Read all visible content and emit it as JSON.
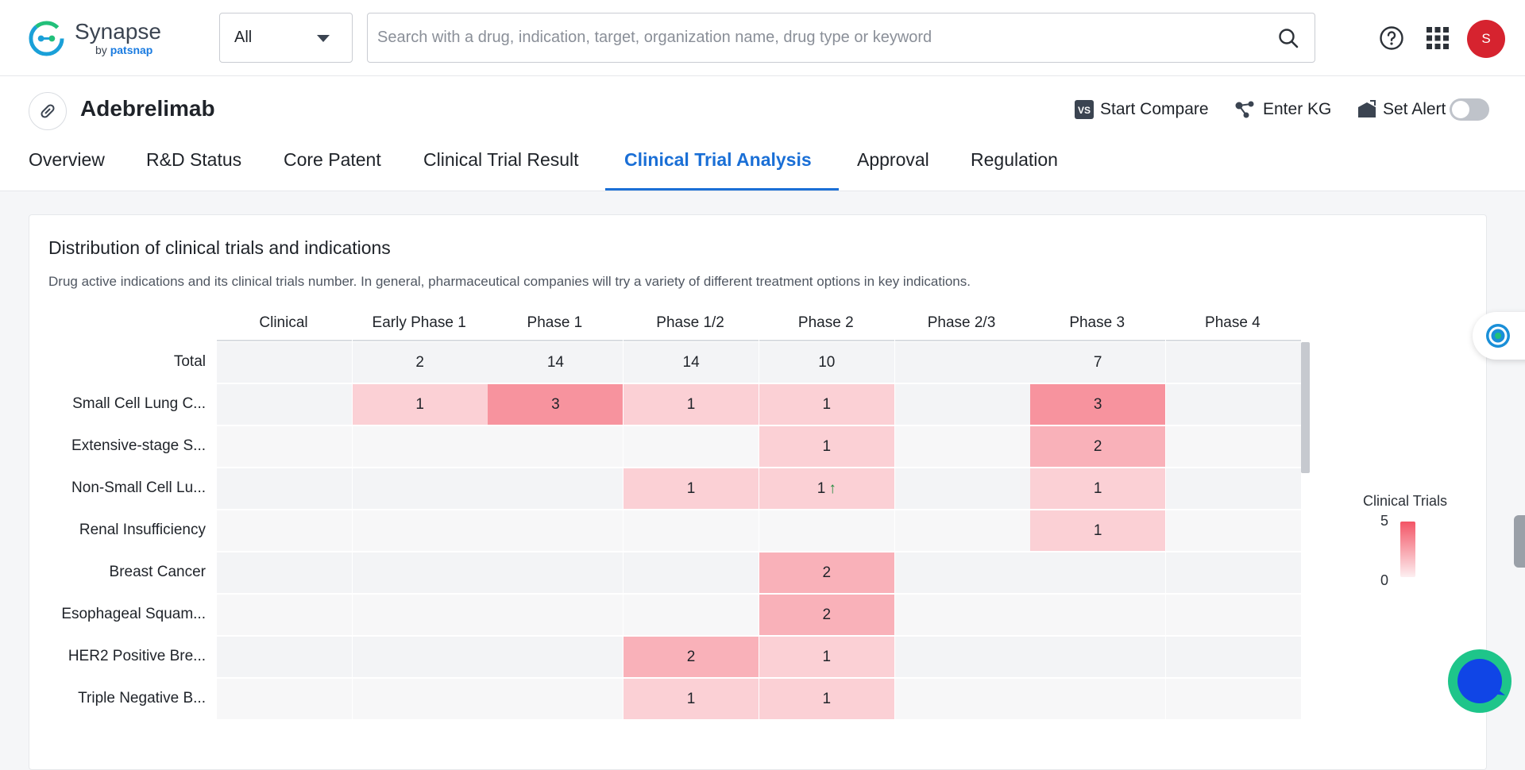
{
  "app": {
    "name": "Synapse",
    "by": "by",
    "brand": "patsnap"
  },
  "search": {
    "scope": "All",
    "placeholder": "Search with a drug, indication, target, organization name, drug type or keyword"
  },
  "user": {
    "initial": "S"
  },
  "drug": {
    "name": "Adebrelimab"
  },
  "actions": {
    "compare": "Start Compare",
    "kg": "Enter KG",
    "alert": "Set Alert",
    "alert_enabled": false
  },
  "tabs": [
    {
      "label": "Overview",
      "active": false
    },
    {
      "label": "R&D Status",
      "active": false
    },
    {
      "label": "Core Patent",
      "active": false
    },
    {
      "label": "Clinical Trial Result",
      "active": false
    },
    {
      "label": "Clinical Trial Analysis",
      "active": true
    },
    {
      "label": "Approval",
      "active": false
    },
    {
      "label": "Regulation",
      "active": false
    }
  ],
  "card": {
    "title": "Distribution of clinical trials and indications",
    "description": "Drug active indications and its clinical trials number. In general, pharmaceutical companies will try a variety of different treatment options in key indications."
  },
  "chart_data": {
    "type": "heatmap",
    "columns": [
      "Clinical",
      "Early Phase 1",
      "Phase 1",
      "Phase 1/2",
      "Phase 2",
      "Phase 2/3",
      "Phase 3",
      "Phase 4"
    ],
    "rows": [
      {
        "label": "Total",
        "values": [
          null,
          2,
          14,
          14,
          10,
          null,
          7,
          null
        ]
      },
      {
        "label": "Small Cell Lung C...",
        "values": [
          null,
          1,
          3,
          1,
          1,
          null,
          3,
          null
        ]
      },
      {
        "label": "Extensive-stage S...",
        "values": [
          null,
          null,
          null,
          null,
          1,
          null,
          2,
          null
        ]
      },
      {
        "label": "Non-Small Cell Lu...",
        "values": [
          null,
          null,
          null,
          1,
          1,
          null,
          1,
          null
        ],
        "trend_up": [
          4
        ]
      },
      {
        "label": "Renal Insufficiency",
        "values": [
          null,
          null,
          null,
          null,
          null,
          null,
          1,
          null
        ]
      },
      {
        "label": "Breast Cancer",
        "values": [
          null,
          null,
          null,
          null,
          2,
          null,
          null,
          null
        ]
      },
      {
        "label": "Esophageal Squam...",
        "values": [
          null,
          null,
          null,
          null,
          2,
          null,
          null,
          null
        ]
      },
      {
        "label": "HER2 Positive Bre...",
        "values": [
          null,
          null,
          null,
          2,
          1,
          null,
          null,
          null
        ]
      },
      {
        "label": "Triple Negative B...",
        "values": [
          null,
          null,
          null,
          1,
          1,
          null,
          null,
          null
        ]
      }
    ],
    "legend": {
      "title": "Clinical Trials",
      "max": "5",
      "min": "0"
    },
    "colors": {
      "high": "#f35566",
      "low": "#fdeff1",
      "empty": "#f3f4f6"
    }
  }
}
